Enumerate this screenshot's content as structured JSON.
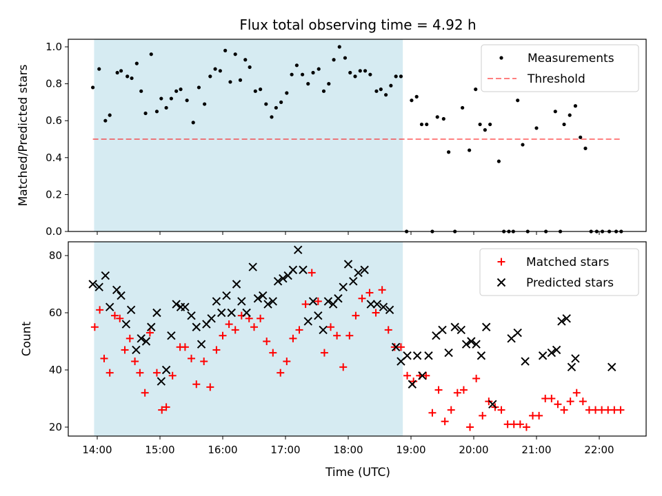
{
  "title": "Flux total observing time = 4.92 h",
  "colors": {
    "shade": "#add8e6",
    "threshold": "#ff0000",
    "matched": "#ff0000",
    "predicted": "#000000",
    "measurement": "#000000"
  },
  "chart_data": [
    {
      "type": "scatter",
      "panel": "top",
      "ylabel": "Matched/Predicted stars",
      "xlabel": "",
      "xlim": [
        13.93,
        22.45
      ],
      "ylim": [
        0,
        1.05
      ],
      "yticks": [
        0.0,
        0.2,
        0.4,
        0.6,
        0.8,
        1.0
      ],
      "ytick_labels": [
        "0.0",
        "0.2",
        "0.4",
        "0.6",
        "0.8",
        "1.0"
      ],
      "grid": false,
      "legend_position": "top-right",
      "shaded_interval": [
        13.95,
        18.87
      ],
      "threshold": {
        "name": "Threshold",
        "value": 0.5,
        "x_range": [
          13.93,
          22.35
        ]
      },
      "series": [
        {
          "name": "Measurements",
          "marker": "dot",
          "x": [
            13.93,
            14.03,
            14.13,
            14.2,
            14.32,
            14.38,
            14.48,
            14.55,
            14.63,
            14.7,
            14.77,
            14.86,
            14.95,
            15.02,
            15.1,
            15.18,
            15.26,
            15.33,
            15.43,
            15.53,
            15.62,
            15.71,
            15.8,
            15.88,
            15.96,
            16.04,
            16.12,
            16.2,
            16.28,
            16.36,
            16.43,
            16.52,
            16.6,
            16.69,
            16.78,
            16.85,
            16.93,
            17.02,
            17.1,
            17.18,
            17.27,
            17.36,
            17.44,
            17.53,
            17.61,
            17.69,
            17.77,
            17.86,
            17.95,
            18.03,
            18.11,
            18.19,
            18.27,
            18.35,
            18.45,
            18.52,
            18.6,
            18.68,
            18.76,
            18.84,
            18.93,
            19.01,
            19.09,
            19.17,
            19.25,
            19.34,
            19.42,
            19.52,
            19.6,
            19.7,
            19.82,
            19.93,
            20.03,
            20.1,
            20.18,
            20.26,
            20.4,
            20.48,
            20.56,
            20.63,
            20.7,
            20.78,
            20.86,
            21.0,
            21.15,
            21.3,
            21.38,
            21.44,
            21.53,
            21.62,
            21.7,
            21.78,
            21.87,
            21.96,
            22.05,
            22.16,
            22.27,
            22.35
          ],
          "y": [
            0.78,
            0.88,
            0.6,
            0.63,
            0.86,
            0.87,
            0.84,
            0.83,
            0.91,
            0.76,
            0.64,
            0.96,
            0.65,
            0.72,
            0.67,
            0.72,
            0.76,
            0.77,
            0.71,
            0.59,
            0.78,
            0.69,
            0.84,
            0.88,
            0.87,
            0.98,
            0.81,
            0.96,
            0.82,
            0.93,
            0.89,
            0.76,
            0.77,
            0.69,
            0.62,
            0.67,
            0.7,
            0.75,
            0.85,
            0.9,
            0.85,
            0.8,
            0.86,
            0.88,
            0.76,
            0.8,
            0.93,
            1.0,
            0.94,
            0.86,
            0.84,
            0.87,
            0.87,
            0.85,
            0.76,
            0.77,
            0.74,
            0.79,
            0.84,
            0.84,
            0.0,
            0.71,
            0.73,
            0.58,
            0.58,
            0.0,
            0.62,
            0.61,
            0.43,
            0.0,
            0.67,
            0.44,
            0.77,
            0.58,
            0.55,
            0.58,
            0.38,
            0.0,
            0.0,
            0.0,
            0.71,
            0.47,
            0.0,
            0.56,
            0.0,
            0.65,
            0.0,
            0.58,
            0.63,
            0.68,
            0.51,
            0.45,
            0.0,
            0.0,
            0.0,
            0.0,
            0.0,
            0.0
          ]
        }
      ]
    },
    {
      "type": "scatter",
      "panel": "bottom",
      "ylabel": "Count",
      "xlabel": "Time (UTC)",
      "xlim": [
        13.5,
        22.45
      ],
      "ylim": [
        16,
        86
      ],
      "yticks": [
        20,
        40,
        60,
        80
      ],
      "ytick_labels": [
        "20",
        "40",
        "60",
        "80"
      ],
      "xticks": [
        14,
        15,
        16,
        17,
        18,
        19,
        20,
        21,
        22
      ],
      "xtick_labels": [
        "14:00",
        "15:00",
        "16:00",
        "17:00",
        "18:00",
        "19:00",
        "20:00",
        "21:00",
        "22:00"
      ],
      "grid": false,
      "legend_position": "top-right",
      "shaded_interval": [
        13.95,
        18.87
      ],
      "series": [
        {
          "name": "Matched stars",
          "marker": "plus",
          "x": [
            13.96,
            14.04,
            14.11,
            14.2,
            14.28,
            14.36,
            14.44,
            14.52,
            14.6,
            14.68,
            14.76,
            14.84,
            14.95,
            15.03,
            15.1,
            15.2,
            15.32,
            15.4,
            15.5,
            15.58,
            15.7,
            15.8,
            15.9,
            16.0,
            16.1,
            16.2,
            16.3,
            16.42,
            16.5,
            16.6,
            16.7,
            16.8,
            16.92,
            17.02,
            17.12,
            17.22,
            17.32,
            17.42,
            17.52,
            17.62,
            17.72,
            17.82,
            17.92,
            18.02,
            18.12,
            18.22,
            18.34,
            18.44,
            18.54,
            18.64,
            18.74,
            18.84,
            18.94,
            19.04,
            19.14,
            19.24,
            19.34,
            19.44,
            19.54,
            19.64,
            19.74,
            19.84,
            19.94,
            20.04,
            20.14,
            20.24,
            20.34,
            20.44,
            20.54,
            20.64,
            20.74,
            20.84,
            20.94,
            21.04,
            21.14,
            21.24,
            21.34,
            21.44,
            21.54,
            21.64,
            21.74,
            21.84,
            21.94,
            22.04,
            22.14,
            22.24,
            22.34
          ],
          "y": [
            55,
            61,
            44,
            39,
            59,
            58,
            47,
            51,
            43,
            39,
            32,
            53,
            39,
            26,
            27,
            38,
            48,
            48,
            44,
            35,
            43,
            34,
            47,
            52,
            56,
            54,
            59,
            58,
            55,
            58,
            50,
            46,
            39,
            43,
            51,
            54,
            63,
            74,
            64,
            46,
            55,
            52,
            41,
            52,
            59,
            65,
            67,
            60,
            68,
            54,
            48,
            48,
            38,
            36,
            38,
            38,
            25,
            33,
            22,
            26,
            32,
            33,
            20,
            37,
            24,
            29,
            27,
            26,
            21,
            21,
            21,
            20,
            24,
            24,
            30,
            30,
            28,
            26,
            29,
            32,
            29,
            26,
            26,
            26,
            26,
            26,
            26
          ]
        },
        {
          "name": "Predicted stars",
          "marker": "x",
          "x": [
            13.93,
            14.03,
            14.13,
            14.2,
            14.31,
            14.38,
            14.46,
            14.54,
            14.62,
            14.7,
            14.78,
            14.86,
            14.95,
            15.02,
            15.1,
            15.18,
            15.26,
            15.33,
            15.4,
            15.5,
            15.58,
            15.66,
            15.74,
            15.82,
            15.9,
            15.98,
            16.06,
            16.14,
            16.22,
            16.3,
            16.38,
            16.48,
            16.56,
            16.64,
            16.72,
            16.8,
            16.88,
            16.96,
            17.04,
            17.12,
            17.2,
            17.28,
            17.36,
            17.44,
            17.52,
            17.6,
            17.68,
            17.76,
            17.84,
            17.92,
            18.0,
            18.08,
            18.16,
            18.26,
            18.36,
            18.46,
            18.56,
            18.66,
            18.76,
            18.84,
            18.94,
            19.02,
            19.1,
            19.18,
            19.28,
            19.4,
            19.5,
            19.6,
            19.7,
            19.8,
            19.88,
            19.96,
            20.04,
            20.12,
            20.2,
            20.3,
            20.6,
            20.7,
            20.82,
            21.1,
            21.24,
            21.32,
            21.4,
            21.48,
            21.56,
            21.62,
            22.2
          ],
          "y": [
            70,
            69,
            73,
            62,
            68,
            66,
            56,
            61,
            47,
            51,
            50,
            55,
            60,
            36,
            40,
            52,
            63,
            62,
            62,
            59,
            55,
            49,
            56,
            58,
            64,
            60,
            66,
            60,
            70,
            64,
            60,
            76,
            65,
            66,
            63,
            64,
            71,
            72,
            73,
            75,
            82,
            75,
            57,
            64,
            59,
            54,
            64,
            63,
            65,
            69,
            77,
            71,
            74,
            75,
            63,
            63,
            62,
            61,
            48,
            43,
            45,
            35,
            45,
            38,
            45,
            52,
            54,
            46,
            55,
            54,
            49,
            50,
            49,
            45,
            55,
            28,
            51,
            53,
            43,
            45,
            46,
            47,
            57,
            58,
            41,
            44,
            41
          ]
        }
      ]
    }
  ]
}
